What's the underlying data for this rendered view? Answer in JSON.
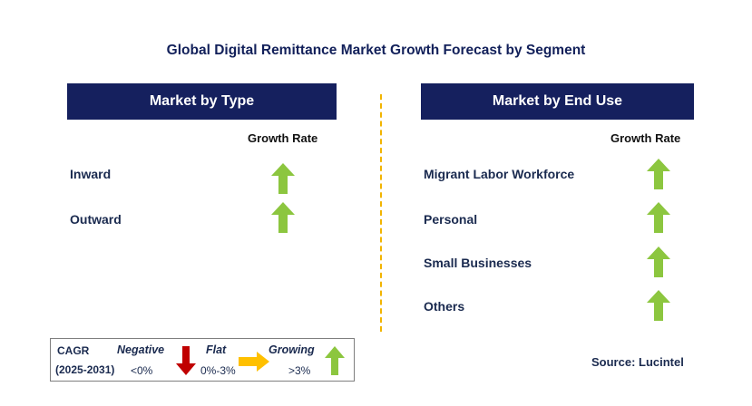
{
  "title": "Global Digital Remittance Market Growth Forecast by Segment",
  "left_panel": {
    "header": "Market by Type",
    "column_label": "Growth Rate",
    "rows": [
      {
        "label": "Inward",
        "trend": "growing"
      },
      {
        "label": "Outward",
        "trend": "growing"
      }
    ]
  },
  "right_panel": {
    "header": "Market by End Use",
    "column_label": "Growth Rate",
    "rows": [
      {
        "label": "Migrant Labor Workforce",
        "trend": "growing"
      },
      {
        "label": "Personal",
        "trend": "growing"
      },
      {
        "label": "Small Businesses",
        "trend": "growing"
      },
      {
        "label": "Others",
        "trend": "growing"
      }
    ]
  },
  "legend": {
    "cagr_label": "CAGR",
    "period": "(2025-2031)",
    "negative_label": "Negative",
    "negative_range": "<0%",
    "flat_label": "Flat",
    "flat_range": "0%-3%",
    "growing_label": "Growing",
    "growing_range": ">3%"
  },
  "source": "Source: Lucintel",
  "colors": {
    "header_bg": "#15205e",
    "growing": "#8cc63f",
    "negative": "#c00000",
    "flat": "#ffc000",
    "divider": "#f2b400"
  },
  "icons": {
    "growing": "arrow-up-icon",
    "negative": "arrow-down-icon",
    "flat": "arrow-right-icon"
  }
}
